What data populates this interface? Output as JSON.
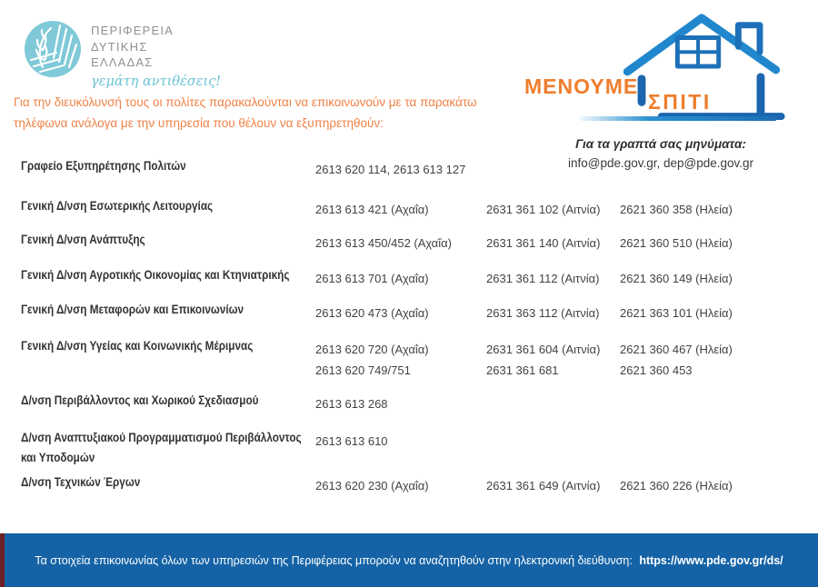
{
  "header": {
    "org": {
      "line1": "ΠΕΡΙΦΕΡΕΙΑ",
      "line2": "ΔΥΤΙΚΗΣ",
      "line3": "ΕΛΛΑΔΑΣ",
      "tagline": "γεμάτη αντιθέσεις!"
    },
    "menoume_spiti": {
      "word1": "ΜΕΝΟΥΜΕ",
      "word2": "ΣΠΙΤΙ"
    }
  },
  "intro": {
    "lines": [
      "Για την διευκόλυνσή τους οι πολίτες παρακαλούνται να επικοινωνούν με τα παρακάτω",
      "τηλέφωνα ανάλογα με την υπηρεσία που θέλουν να εξυπηρετηθούν:"
    ]
  },
  "messages": {
    "title": "Για τα γραπτά σας μηνύματα:",
    "emails": "info@pde.gov.gr, dep@pde.gov.gr"
  },
  "directory": {
    "rows": [
      {
        "label_lines": [
          "Γραφείο Εξυπηρέτησης Πολιτών"
        ],
        "cols": [
          [
            "2613 620 114,  2613 613 127"
          ],
          [],
          []
        ]
      },
      {
        "label_lines": [
          "Γενική Δ/νση Εσωτερικής Λειτουργίας"
        ],
        "cols": [
          [
            "2613 613 421 (Αχαΐα)"
          ],
          [
            "2631 361 102 (Αιτνία)"
          ],
          [
            "2621 360 358 (Ηλεία)"
          ]
        ]
      },
      {
        "label_lines": [
          "Γενική Δ/νση Ανάπτυξης"
        ],
        "cols": [
          [
            "2613 613 450/452 (Αχαΐα)"
          ],
          [
            "2631 361 140 (Αιτνία)"
          ],
          [
            "2621 360 510 (Ηλεία)"
          ]
        ]
      },
      {
        "label_lines": [
          "Γενική Δ/νση Αγροτικής Οικονομίας και Κτηνιατρικής"
        ],
        "cols": [
          [
            "2613 613 701 (Αχαΐα)"
          ],
          [
            "2631 361 112 (Αιτνία)"
          ],
          [
            "2621 360 149 (Ηλεία)"
          ]
        ]
      },
      {
        "label_lines": [
          "Γενική Δ/νση Μεταφορών και Επικοινωνίων"
        ],
        "cols": [
          [
            "2613 620 473 (Αχαΐα)"
          ],
          [
            "2631 363 112 (Αιτνία)"
          ],
          [
            "2621 363 101 (Ηλεία)"
          ]
        ]
      },
      {
        "label_lines": [
          "Γενική Δ/νση Υγείας και Κοινωνικής Μέριμνας"
        ],
        "cols": [
          [
            "2613 620 720 (Αχαΐα)",
            "2613 620 749/751"
          ],
          [
            "2631 361 604 (Αιτνία)",
            "2631 361 681"
          ],
          [
            "2621 360 467 (Ηλεία)",
            "2621 360 453"
          ]
        ]
      },
      {
        "label_lines": [
          "Δ/νση Περιβάλλοντος και Χωρικού Σχεδιασμού"
        ],
        "cols": [
          [
            "2613 613 268"
          ],
          [],
          []
        ]
      },
      {
        "label_lines": [
          "Δ/νση Αναπτυξιακού Προγραμματισμού Περιβάλλοντος",
          "και Υποδομών"
        ],
        "cols": [
          [
            "2613 613 610"
          ],
          [],
          []
        ]
      },
      {
        "label_lines": [
          "Δ/νση Τεχνικών Έργων"
        ],
        "cols": [
          [
            "2613 620 230 (Αχαΐα)"
          ],
          [
            "2631 361 649 (Αιτνία)"
          ],
          [
            "2621 360 226 (Ηλεία)"
          ]
        ]
      }
    ]
  },
  "footer": {
    "text": "Τα στοιχεία επικοινωνίας όλων των υπηρεσιών της Περιφέρειας μπορούν να  αναζητηθούν στην ηλεκτρονική διεύθυνση:",
    "url": "https://www.pde.gov.gr/ds/"
  },
  "colors": {
    "accent_orange": "#F08246",
    "logo_orange": "#EE7E2E",
    "brand_lightblue": "#7FC9D8",
    "house_blue": "#1C6FB8",
    "footer_blue": "#1563A6",
    "footer_stripe_maroon": "#6E2025",
    "text_dark": "#333333"
  }
}
